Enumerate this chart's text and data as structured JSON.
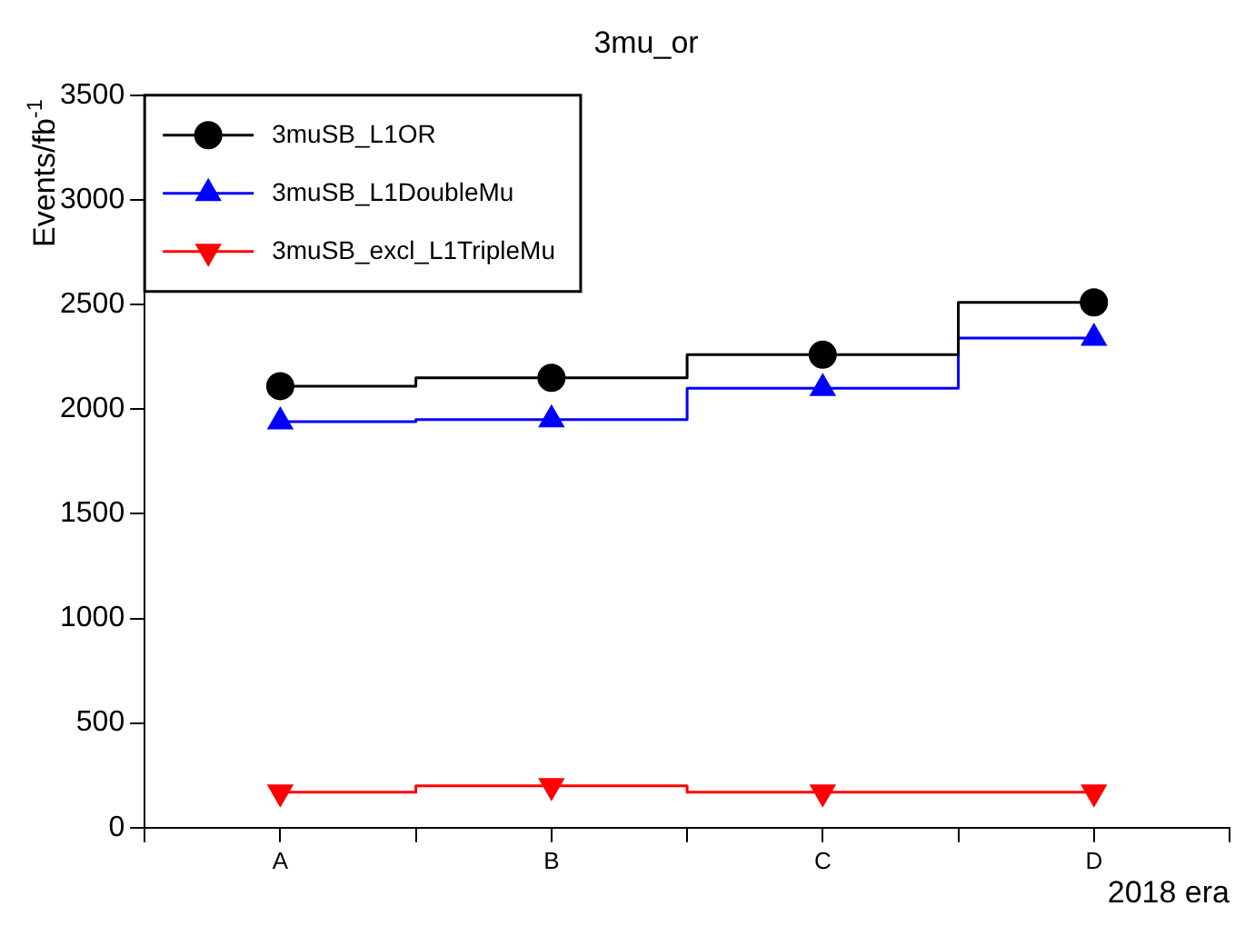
{
  "chart_data": {
    "type": "step",
    "title": "3mu_or",
    "xlabel": "2018 era",
    "ylabel": "Events/fb$^{-1}$",
    "categories": [
      "A",
      "B",
      "C",
      "D"
    ],
    "series": [
      {
        "name": "3muSB_L1OR",
        "color": "#000000",
        "marker": "circle",
        "values": [
          2110,
          2150,
          2260,
          2510
        ]
      },
      {
        "name": "3muSB_L1DoubleMu",
        "color": "#0000ff",
        "marker": "triangle",
        "values": [
          1940,
          1950,
          2100,
          2340
        ]
      },
      {
        "name": "3muSB_excl_L1TripleMu",
        "color": "#ff0000",
        "marker": "triangle-down",
        "values": [
          170,
          200,
          170,
          170
        ]
      }
    ],
    "ylim": [
      0,
      3500
    ],
    "yticks": [
      0,
      500,
      1000,
      1500,
      2000,
      2500,
      3000,
      3500
    ],
    "grid": false,
    "legend": "top left"
  }
}
